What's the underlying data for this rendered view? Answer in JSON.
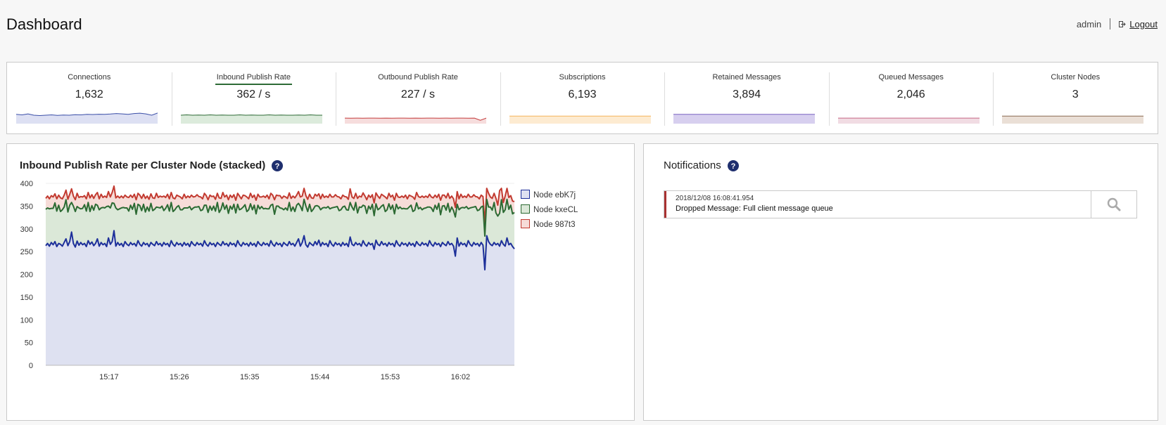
{
  "header": {
    "title": "Dashboard",
    "user": "admin",
    "logout_label": "Logout"
  },
  "metrics": [
    {
      "label": "Connections",
      "value": "1,632",
      "color": "#3b4fa8",
      "fill": "#dde0f3",
      "active": false,
      "spark": [
        0.55,
        0.52,
        0.58,
        0.5,
        0.48,
        0.5,
        0.52,
        0.49,
        0.51,
        0.5,
        0.53,
        0.52,
        0.55,
        0.54,
        0.56,
        0.55,
        0.57,
        0.6,
        0.58,
        0.55,
        0.6,
        0.62,
        0.58,
        0.5,
        0.63
      ]
    },
    {
      "label": "Inbound Publish Rate",
      "value": "362 / s",
      "color": "#2e6b36",
      "fill": "#dcebdc",
      "active": true,
      "spark": [
        0.5,
        0.52,
        0.5,
        0.51,
        0.5,
        0.52,
        0.5,
        0.51,
        0.5,
        0.5,
        0.52,
        0.5,
        0.51,
        0.5,
        0.5,
        0.52,
        0.5,
        0.51,
        0.5,
        0.5,
        0.51,
        0.5,
        0.52,
        0.5,
        0.5
      ]
    },
    {
      "label": "Outbound Publish Rate",
      "value": "227 / s",
      "color": "#c43c3c",
      "fill": "#f6dddd",
      "active": false,
      "spark": [
        0.33,
        0.32,
        0.33,
        0.32,
        0.33,
        0.33,
        0.32,
        0.33,
        0.32,
        0.33,
        0.33,
        0.32,
        0.33,
        0.32,
        0.33,
        0.33,
        0.32,
        0.33,
        0.32,
        0.33,
        0.33,
        0.32,
        0.33,
        0.2,
        0.33
      ]
    },
    {
      "label": "Subscriptions",
      "value": "6,193",
      "color": "#f3b35b",
      "fill": "#fdebd1",
      "active": false,
      "spark": [
        0.45,
        0.45,
        0.45,
        0.45,
        0.45,
        0.45,
        0.45,
        0.45,
        0.45,
        0.45,
        0.45,
        0.45,
        0.45,
        0.45,
        0.45,
        0.45,
        0.45,
        0.45,
        0.45,
        0.45,
        0.45,
        0.45,
        0.45,
        0.45,
        0.45
      ]
    },
    {
      "label": "Retained Messages",
      "value": "3,894",
      "color": "#7a62c0",
      "fill": "#d7cfef",
      "active": false,
      "spark": [
        0.55,
        0.55,
        0.55,
        0.55,
        0.55,
        0.55,
        0.55,
        0.55,
        0.55,
        0.55,
        0.55,
        0.55,
        0.55,
        0.55,
        0.55,
        0.55,
        0.55,
        0.55,
        0.55,
        0.55,
        0.55,
        0.55,
        0.55,
        0.55,
        0.55
      ]
    },
    {
      "label": "Queued Messages",
      "value": "2,046",
      "color": "#c56584",
      "fill": "#f1dce3",
      "active": false,
      "spark": [
        0.33,
        0.33,
        0.33,
        0.33,
        0.33,
        0.33,
        0.33,
        0.33,
        0.33,
        0.33,
        0.33,
        0.33,
        0.33,
        0.33,
        0.33,
        0.33,
        0.33,
        0.33,
        0.33,
        0.33,
        0.33,
        0.33,
        0.33,
        0.33,
        0.33
      ]
    },
    {
      "label": "Cluster Nodes",
      "value": "3",
      "color": "#8a6a52",
      "fill": "#eadfd6",
      "active": false,
      "spark": [
        0.45,
        0.45,
        0.45,
        0.45,
        0.45,
        0.45,
        0.45,
        0.45,
        0.45,
        0.45,
        0.45,
        0.45,
        0.45,
        0.45,
        0.45,
        0.45,
        0.45,
        0.45,
        0.45,
        0.45,
        0.45,
        0.45,
        0.45,
        0.45,
        0.45
      ]
    }
  ],
  "chart_panel": {
    "title": "Inbound Publish Rate per Cluster Node (stacked)",
    "help_icon": "question-circle-icon"
  },
  "chart_data": {
    "type": "area",
    "stacked": true,
    "ylim": [
      0,
      400
    ],
    "yticks": [
      0,
      50,
      100,
      150,
      200,
      250,
      300,
      350,
      400
    ],
    "xticks": [
      "15:17",
      "15:26",
      "15:35",
      "15:44",
      "15:53",
      "16:02"
    ],
    "legend_position": "right",
    "grid": "horizontal",
    "series": [
      {
        "name": "Node ebK7j",
        "color": "#1d2f9a",
        "fill": "#dee1f1",
        "values": [
          263,
          268,
          262,
          270,
          265,
          272,
          261,
          268,
          266,
          262,
          270,
          278,
          263,
          272,
          293,
          268,
          260,
          273,
          264,
          270,
          265,
          268,
          261,
          274,
          266,
          271,
          263,
          268,
          278,
          262,
          270,
          265,
          268,
          261,
          280,
          266,
          272,
          296,
          262,
          270,
          264,
          268,
          261,
          272,
          266,
          263,
          270,
          265,
          268,
          262,
          274,
          266,
          262,
          270,
          265,
          268,
          261,
          270,
          266,
          263,
          272,
          265,
          268,
          262,
          270,
          265,
          268,
          261,
          274,
          266,
          262,
          270,
          265,
          268,
          262,
          270,
          264,
          268,
          261,
          272,
          266,
          263,
          270,
          265,
          268,
          262,
          274,
          266,
          262,
          270,
          265,
          268,
          261,
          270,
          266,
          263,
          272,
          265,
          268,
          262,
          270,
          265,
          268,
          261,
          274,
          266,
          262,
          270,
          265,
          268,
          262,
          270,
          264,
          268,
          261,
          272,
          266,
          263,
          270,
          265,
          268,
          262,
          274,
          266,
          262,
          270,
          265,
          268,
          261,
          270,
          266,
          263,
          272,
          265,
          268,
          262,
          270,
          278,
          262,
          270,
          285,
          265,
          260,
          270,
          266,
          263,
          272,
          265,
          275,
          262,
          270,
          265,
          268,
          261,
          274,
          266,
          262,
          270,
          265,
          268,
          262,
          270,
          264,
          268,
          261,
          282,
          266,
          263,
          270,
          265,
          268,
          262,
          274,
          266,
          262,
          270,
          265,
          268,
          255,
          275,
          266,
          263,
          272,
          265,
          268,
          262,
          270,
          265,
          268,
          261,
          274,
          266,
          262,
          270,
          265,
          268,
          262,
          270,
          264,
          268,
          261,
          272,
          266,
          263,
          270,
          265,
          268,
          262,
          274,
          266,
          262,
          270,
          265,
          268,
          261,
          270,
          266,
          263,
          272,
          265,
          268,
          262,
          240,
          280,
          262,
          270,
          265,
          268,
          261,
          274,
          266,
          262,
          270,
          265,
          268,
          262,
          270,
          264,
          210,
          285,
          272,
          266,
          263,
          270,
          265,
          268,
          262,
          274,
          266,
          262,
          280,
          265,
          268,
          261,
          256
        ]
      },
      {
        "name": "Node kxeCL",
        "color": "#2c6a33",
        "fill": "#dbe8d8",
        "values": [
          80,
          78,
          82,
          75,
          80,
          85,
          78,
          84,
          72,
          80,
          78,
          86,
          74,
          80,
          65,
          82,
          78,
          76,
          82,
          74,
          80,
          85,
          78,
          84,
          72,
          80,
          78,
          86,
          74,
          80,
          76,
          82,
          78,
          88,
          70,
          80,
          85,
          60,
          84,
          72,
          80,
          78,
          86,
          74,
          80,
          76,
          82,
          78,
          88,
          70,
          80,
          85,
          78,
          84,
          72,
          80,
          78,
          86,
          74,
          80,
          76,
          82,
          78,
          88,
          70,
          80,
          85,
          78,
          84,
          72,
          80,
          78,
          86,
          74,
          80,
          76,
          82,
          78,
          88,
          70,
          80,
          85,
          78,
          84,
          72,
          80,
          78,
          86,
          74,
          80,
          76,
          82,
          78,
          88,
          70,
          80,
          85,
          78,
          84,
          72,
          80,
          78,
          86,
          74,
          80,
          76,
          82,
          78,
          88,
          70,
          80,
          85,
          78,
          84,
          72,
          80,
          78,
          86,
          74,
          80,
          76,
          82,
          78,
          88,
          70,
          80,
          85,
          78,
          84,
          72,
          80,
          78,
          86,
          74,
          80,
          76,
          82,
          78,
          88,
          70,
          80,
          85,
          78,
          84,
          72,
          80,
          78,
          86,
          74,
          80,
          76,
          82,
          78,
          88,
          70,
          80,
          85,
          78,
          84,
          72,
          80,
          78,
          86,
          74,
          80,
          76,
          82,
          78,
          88,
          70,
          80,
          85,
          78,
          84,
          72,
          80,
          78,
          86,
          74,
          80,
          76,
          82,
          78,
          88,
          70,
          80,
          85,
          78,
          84,
          72,
          80,
          78,
          86,
          74,
          80,
          76,
          82,
          78,
          88,
          70,
          80,
          85,
          78,
          84,
          72,
          80,
          78,
          86,
          74,
          80,
          76,
          82,
          78,
          88,
          70,
          80,
          85,
          78,
          84,
          72,
          80,
          78,
          86,
          74,
          80,
          76,
          82,
          78,
          88,
          70,
          80,
          85,
          78,
          84,
          72,
          80,
          78,
          86,
          74,
          80,
          76,
          82,
          78,
          88,
          70,
          60,
          72,
          90,
          70,
          80,
          85,
          78,
          84,
          72,
          80,
          78,
          86,
          74,
          80,
          76,
          82,
          60
        ]
      },
      {
        "name": "Node 987t3",
        "color": "#c23a30",
        "fill": "#f6dcd8",
        "values": [
          24,
          26,
          22,
          28,
          25,
          20,
          27,
          22,
          30,
          24,
          26,
          21,
          28,
          24,
          30,
          22,
          26,
          29,
          23,
          27,
          25,
          20,
          27,
          22,
          30,
          24,
          26,
          21,
          28,
          24,
          30,
          22,
          26,
          20,
          32,
          24,
          23,
          38,
          22,
          30,
          24,
          26,
          21,
          28,
          24,
          30,
          22,
          26,
          20,
          32,
          24,
          23,
          27,
          22,
          30,
          24,
          26,
          21,
          28,
          24,
          30,
          22,
          26,
          20,
          32,
          24,
          23,
          27,
          22,
          30,
          24,
          26,
          21,
          28,
          24,
          30,
          22,
          26,
          20,
          32,
          24,
          23,
          27,
          22,
          30,
          24,
          26,
          21,
          28,
          24,
          30,
          22,
          26,
          20,
          32,
          24,
          23,
          27,
          22,
          30,
          24,
          26,
          21,
          28,
          24,
          30,
          22,
          26,
          20,
          32,
          24,
          23,
          27,
          22,
          30,
          24,
          26,
          21,
          28,
          24,
          30,
          22,
          26,
          20,
          32,
          24,
          23,
          27,
          22,
          30,
          24,
          26,
          21,
          28,
          24,
          30,
          22,
          26,
          20,
          32,
          24,
          23,
          27,
          22,
          30,
          24,
          26,
          21,
          28,
          24,
          30,
          22,
          26,
          20,
          32,
          24,
          23,
          27,
          22,
          30,
          24,
          26,
          21,
          28,
          24,
          30,
          22,
          26,
          20,
          32,
          24,
          23,
          27,
          22,
          30,
          24,
          26,
          21,
          28,
          24,
          30,
          22,
          26,
          20,
          32,
          24,
          23,
          27,
          22,
          30,
          24,
          26,
          21,
          28,
          24,
          30,
          22,
          26,
          20,
          32,
          24,
          23,
          27,
          22,
          30,
          24,
          26,
          21,
          28,
          24,
          30,
          22,
          26,
          20,
          32,
          24,
          23,
          27,
          22,
          30,
          24,
          26,
          21,
          28,
          24,
          30,
          22,
          26,
          20,
          32,
          24,
          23,
          27,
          22,
          30,
          24,
          26,
          21,
          28,
          24,
          30,
          22,
          26,
          20,
          32,
          24,
          50,
          25,
          22,
          30,
          24,
          26,
          21,
          28,
          24,
          30,
          22,
          26,
          20,
          32,
          24,
          35
        ]
      }
    ]
  },
  "notifications_panel": {
    "title": "Notifications",
    "help_icon": "question-circle-icon",
    "items": [
      {
        "timestamp": "2018/12/08 16:08:41.954",
        "message": "Dropped Message: Full client message queue",
        "severity_color": "#a83232"
      }
    ]
  }
}
